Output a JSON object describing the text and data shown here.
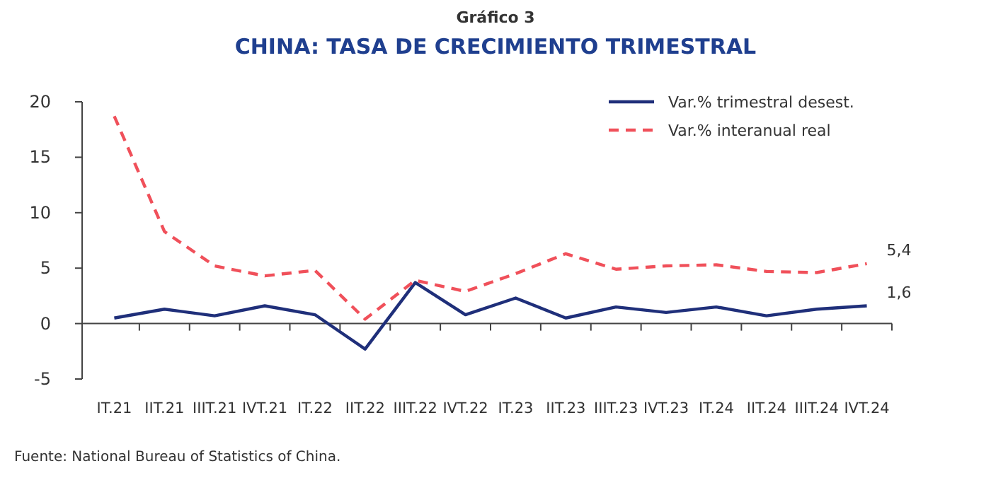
{
  "chart_data": {
    "type": "line",
    "subtitle": "Gráfico 3",
    "title": "CHINA: TASA DE CRECIMIENTO TRIMESTRAL",
    "categories": [
      "IT.21",
      "IIT.21",
      "IIIT.21",
      "IVT.21",
      "IT.22",
      "IIT.22",
      "IIIT.22",
      "IVT.22",
      "IT.23",
      "IIT.23",
      "IIIT.23",
      "IVT.23",
      "IT.24",
      "IIT.24",
      "IIIT.24",
      "IVT.24"
    ],
    "series": [
      {
        "name": "Var.% trimestral desest.",
        "color": "#1f2f7a",
        "line_style": "solid",
        "values": [
          0.5,
          1.3,
          0.7,
          1.6,
          0.8,
          -2.3,
          3.7,
          0.8,
          2.3,
          0.5,
          1.5,
          1.0,
          1.5,
          0.7,
          1.3,
          1.6
        ],
        "value_labels": [
          null,
          null,
          null,
          null,
          null,
          null,
          null,
          null,
          null,
          null,
          null,
          null,
          null,
          null,
          null,
          "1,6"
        ]
      },
      {
        "name": "Var.% interanual real",
        "color": "#f0505a",
        "line_style": "dashed",
        "values": [
          18.7,
          8.3,
          5.2,
          4.3,
          4.8,
          0.4,
          3.9,
          2.9,
          4.5,
          6.3,
          4.9,
          5.2,
          5.3,
          4.7,
          4.6,
          5.4
        ],
        "value_labels": [
          null,
          null,
          null,
          null,
          null,
          null,
          null,
          null,
          null,
          null,
          null,
          null,
          null,
          null,
          null,
          "5,4"
        ]
      }
    ],
    "ylim": [
      -5,
      20
    ],
    "yticks": [
      -5,
      0,
      5,
      10,
      15,
      20
    ],
    "legend": "top right",
    "marker": "none",
    "annotations": [
      "Fuente: National Bureau of Statistics of China."
    ]
  }
}
